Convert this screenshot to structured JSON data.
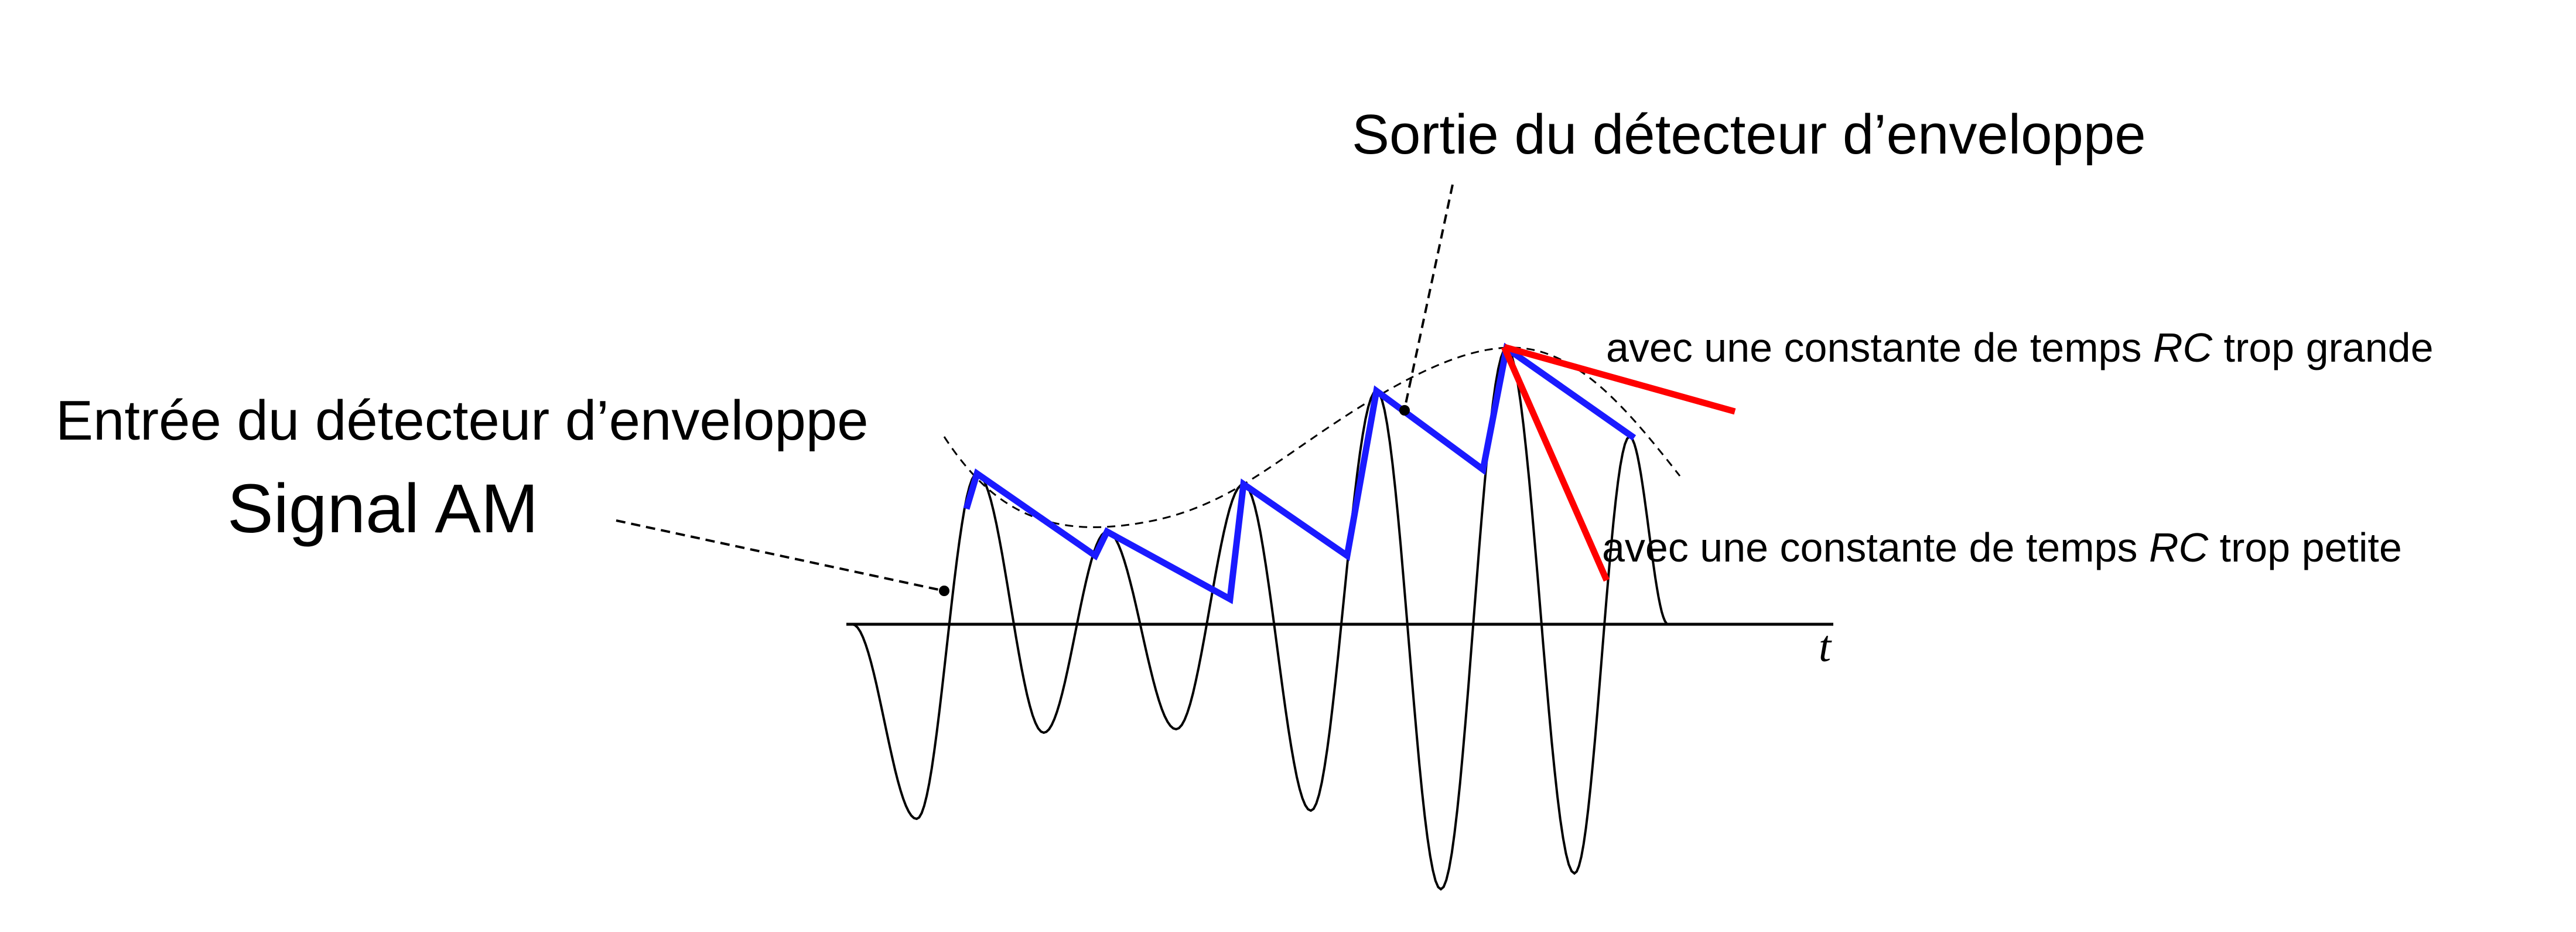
{
  "labels": {
    "output_label": "Sortie du détecteur d’enveloppe",
    "input_label": "Entrée du détecteur d’enveloppe",
    "signal_label": "Signal AM",
    "rc_large_label_pre": "avec une constante de temps ",
    "rc_large_label_rc": "RC",
    "rc_large_label_post": " trop grande",
    "rc_small_label_pre": "avec une constante de temps ",
    "rc_small_label_rc": "RC",
    "rc_small_label_post": " trop petite",
    "time_axis": "t"
  },
  "colors": {
    "signal": "#000000",
    "envelope": "#000000",
    "detector_output": "#1a1aff",
    "rc_error": "#ff0000"
  }
}
